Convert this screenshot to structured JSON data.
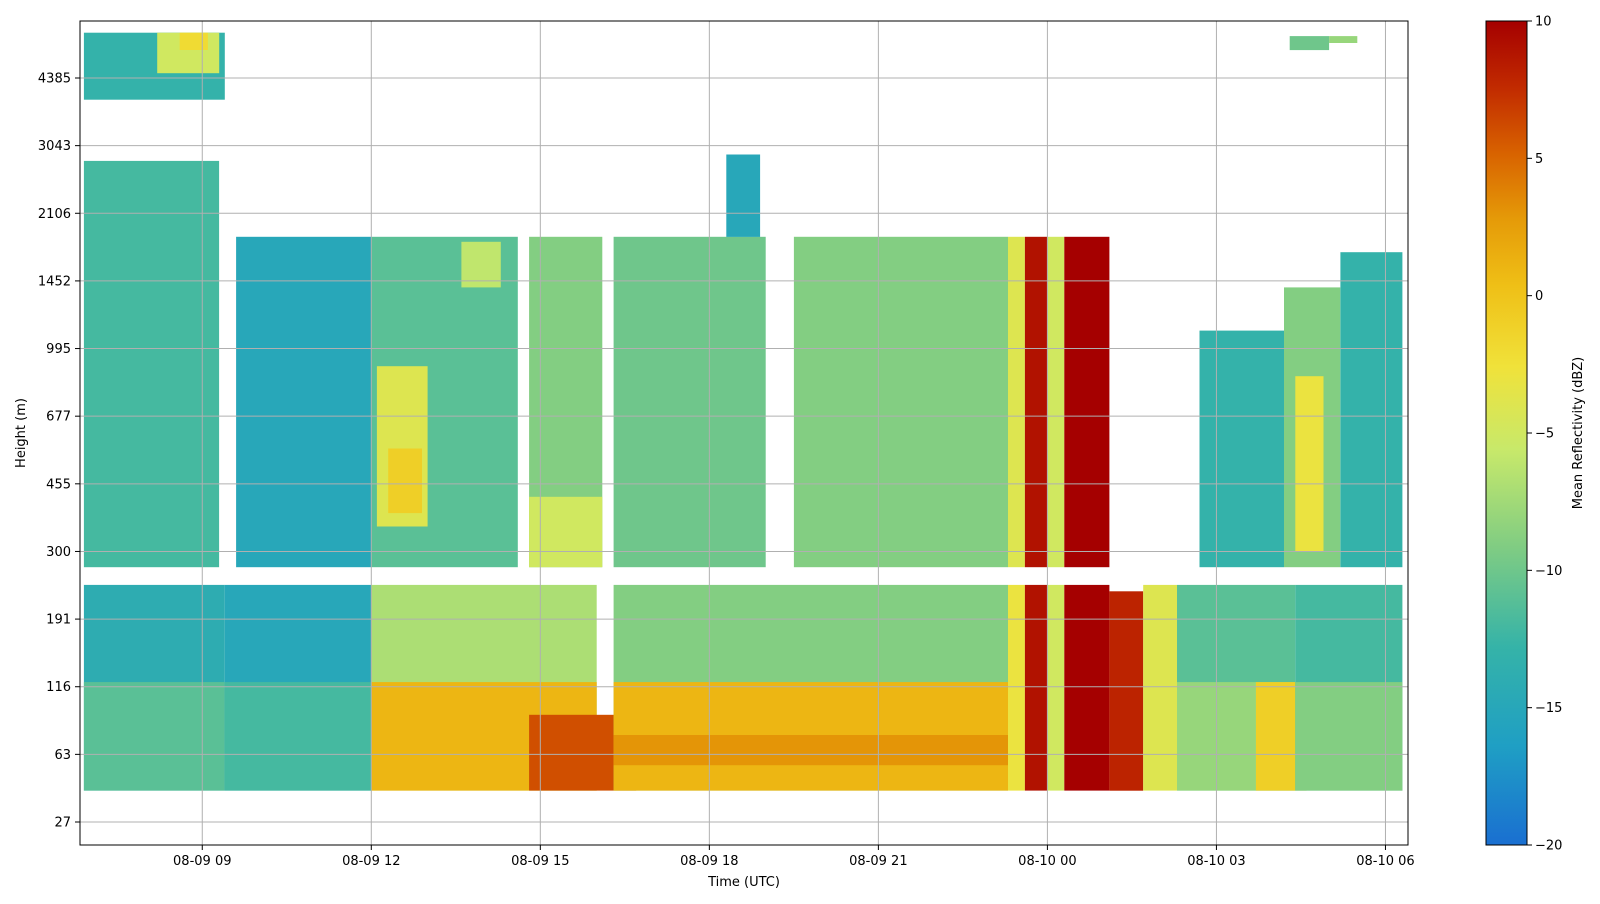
{
  "chart_data": {
    "type": "heatmap",
    "title": "",
    "xlabel": "Time (UTC)",
    "ylabel": "Height (m)",
    "colorbar_label": "Mean Reflectivity (dBZ)",
    "colormap": "rainbow-jet (blue-to-red)",
    "clim": [
      -20,
      10
    ],
    "grid": true,
    "x_tick_labels": [
      "08-09 09",
      "08-09 12",
      "08-09 15",
      "08-09 18",
      "08-09 21",
      "08-10 00",
      "08-10 03",
      "08-10 06"
    ],
    "y_tick_labels": [
      "27",
      "63",
      "116",
      "191",
      "300",
      "455",
      "677",
      "995",
      "1452",
      "2106",
      "3043",
      "4385"
    ],
    "colorbar_ticks": [
      "10",
      "5",
      "0",
      "−5",
      "−10",
      "−15",
      "−20"
    ],
    "colorbar_tick_values": [
      10,
      5,
      0,
      -5,
      -10,
      -15,
      -20
    ],
    "x_range_hours": [
      6.83,
      30.4
    ],
    "time_axis_note": "hours after 08-09 00 UTC",
    "height_levels_m": [
      27,
      63,
      116,
      191,
      300,
      455,
      677,
      995,
      1452,
      2106,
      3043,
      4385
    ],
    "regions": [
      {
        "t0": 6.9,
        "t1": 9.4,
        "h0": 40,
        "h1": 240,
        "dbz": -14
      },
      {
        "t0": 6.9,
        "t1": 9.4,
        "h0": 40,
        "h1": 120,
        "dbz": -11
      },
      {
        "t0": 9.4,
        "t1": 12.0,
        "h0": 40,
        "h1": 240,
        "dbz": -15
      },
      {
        "t0": 9.4,
        "t1": 12.0,
        "h0": 40,
        "h1": 120,
        "dbz": -12
      },
      {
        "t0": 12.0,
        "t1": 16.0,
        "h0": 40,
        "h1": 240,
        "dbz": -7
      },
      {
        "t0": 12.0,
        "t1": 16.0,
        "h0": 40,
        "h1": 120,
        "dbz": 1
      },
      {
        "t0": 14.8,
        "t1": 16.7,
        "h0": 40,
        "h1": 90,
        "dbz": 6
      },
      {
        "t0": 16.3,
        "t1": 23.3,
        "h0": 40,
        "h1": 240,
        "dbz": -9
      },
      {
        "t0": 16.3,
        "t1": 23.3,
        "h0": 40,
        "h1": 120,
        "dbz": 1
      },
      {
        "t0": 16.3,
        "t1": 23.3,
        "h0": 55,
        "h1": 75,
        "dbz": 3
      },
      {
        "t0": 23.3,
        "t1": 23.6,
        "h0": 40,
        "h1": 240,
        "dbz": -3
      },
      {
        "t0": 23.6,
        "t1": 24.0,
        "h0": 40,
        "h1": 240,
        "dbz": 9
      },
      {
        "t0": 24.0,
        "t1": 24.3,
        "h0": 40,
        "h1": 240,
        "dbz": -5
      },
      {
        "t0": 24.3,
        "t1": 25.1,
        "h0": 40,
        "h1": 240,
        "dbz": 10
      },
      {
        "t0": 25.1,
        "t1": 25.7,
        "h0": 40,
        "h1": 230,
        "dbz": 8
      },
      {
        "t0": 25.7,
        "t1": 26.3,
        "h0": 40,
        "h1": 240,
        "dbz": -4
      },
      {
        "t0": 26.3,
        "t1": 28.4,
        "h0": 40,
        "h1": 240,
        "dbz": -11
      },
      {
        "t0": 26.3,
        "t1": 28.4,
        "h0": 40,
        "h1": 120,
        "dbz": -8
      },
      {
        "t0": 27.7,
        "t1": 28.6,
        "h0": 40,
        "h1": 120,
        "dbz": -1
      },
      {
        "t0": 28.4,
        "t1": 30.3,
        "h0": 40,
        "h1": 240,
        "dbz": -12
      },
      {
        "t0": 28.4,
        "t1": 30.3,
        "h0": 40,
        "h1": 120,
        "dbz": -9
      },
      {
        "t0": 6.9,
        "t1": 9.3,
        "h0": 270,
        "h1": 2800,
        "dbz": -12
      },
      {
        "t0": 9.6,
        "t1": 12.0,
        "h0": 270,
        "h1": 1850,
        "dbz": -15
      },
      {
        "t0": 12.0,
        "t1": 14.6,
        "h0": 270,
        "h1": 1850,
        "dbz": -11
      },
      {
        "t0": 12.1,
        "t1": 13.0,
        "h0": 350,
        "h1": 900,
        "dbz": -4
      },
      {
        "t0": 12.3,
        "t1": 12.9,
        "h0": 380,
        "h1": 560,
        "dbz": -1
      },
      {
        "t0": 13.6,
        "t1": 14.3,
        "h0": 1400,
        "h1": 1800,
        "dbz": -6
      },
      {
        "t0": 14.8,
        "t1": 16.1,
        "h0": 270,
        "h1": 1850,
        "dbz": -9
      },
      {
        "t0": 14.8,
        "t1": 16.1,
        "h0": 270,
        "h1": 420,
        "dbz": -5
      },
      {
        "t0": 16.3,
        "t1": 19.0,
        "h0": 270,
        "h1": 1850,
        "dbz": -10
      },
      {
        "t0": 18.3,
        "t1": 18.9,
        "h0": 1850,
        "h1": 2900,
        "dbz": -15
      },
      {
        "t0": 19.5,
        "t1": 23.3,
        "h0": 270,
        "h1": 1850,
        "dbz": -9
      },
      {
        "t0": 23.3,
        "t1": 23.6,
        "h0": 270,
        "h1": 1850,
        "dbz": -4
      },
      {
        "t0": 23.6,
        "t1": 24.0,
        "h0": 270,
        "h1": 1850,
        "dbz": 9
      },
      {
        "t0": 24.0,
        "t1": 24.3,
        "h0": 270,
        "h1": 1850,
        "dbz": -5
      },
      {
        "t0": 24.3,
        "t1": 25.1,
        "h0": 270,
        "h1": 1850,
        "dbz": 10
      },
      {
        "t0": 26.7,
        "t1": 28.2,
        "h0": 270,
        "h1": 1100,
        "dbz": -13
      },
      {
        "t0": 28.2,
        "t1": 29.2,
        "h0": 270,
        "h1": 1400,
        "dbz": -9
      },
      {
        "t0": 28.4,
        "t1": 28.9,
        "h0": 300,
        "h1": 850,
        "dbz": -3
      },
      {
        "t0": 29.2,
        "t1": 30.3,
        "h0": 270,
        "h1": 1700,
        "dbz": -13
      },
      {
        "t0": 6.9,
        "t1": 9.4,
        "h0": 3900,
        "h1": 5600,
        "dbz": -13
      },
      {
        "t0": 8.2,
        "t1": 9.3,
        "h0": 4500,
        "h1": 5600,
        "dbz": -5
      },
      {
        "t0": 8.6,
        "t1": 9.1,
        "h0": 5100,
        "h1": 5600,
        "dbz": -2
      },
      {
        "t0": 28.3,
        "t1": 29.0,
        "h0": 5100,
        "h1": 5500,
        "dbz": -10
      },
      {
        "t0": 29.0,
        "t1": 29.5,
        "h0": 5300,
        "h1": 5500,
        "dbz": -8
      }
    ]
  }
}
